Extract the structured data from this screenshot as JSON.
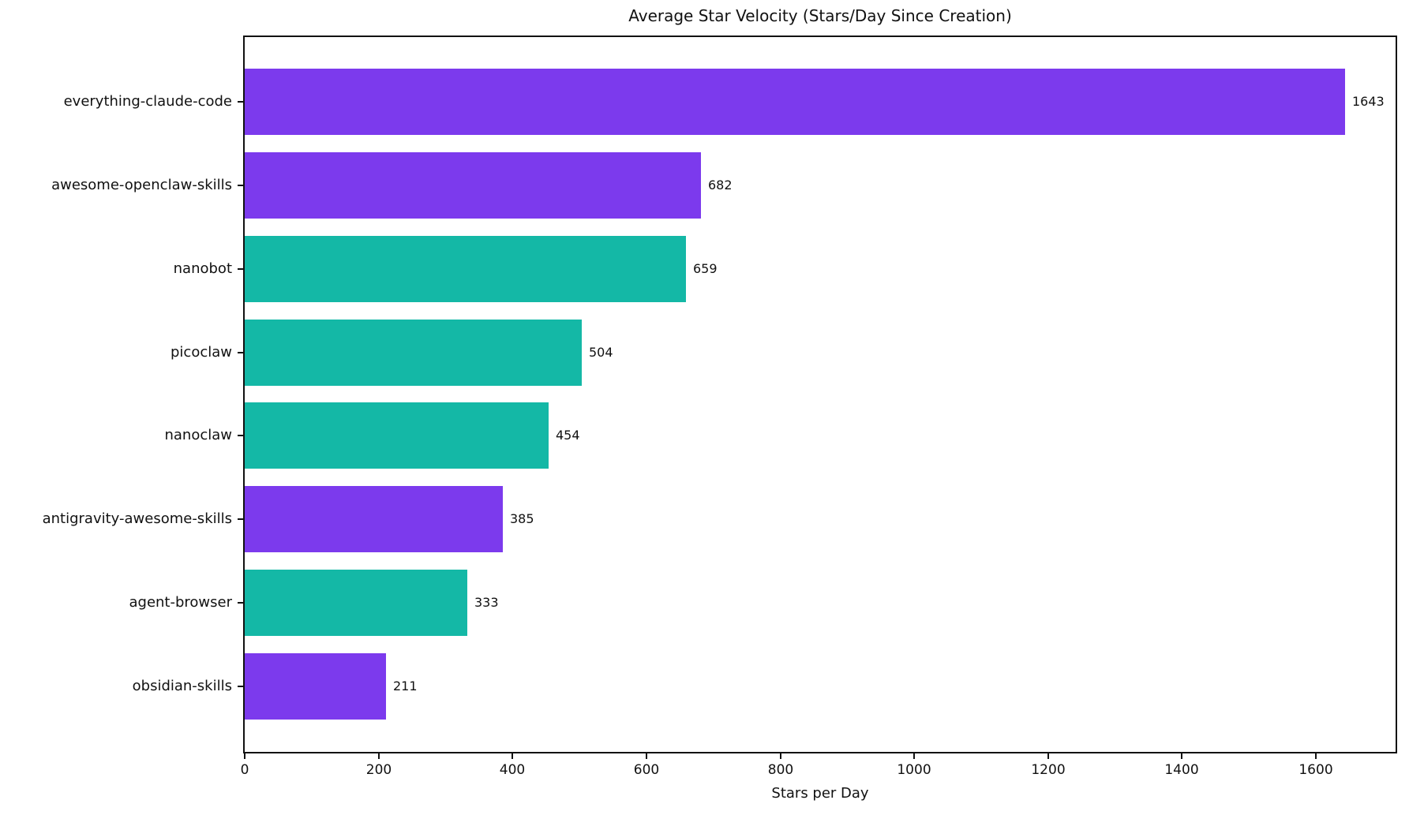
{
  "chart_data": {
    "type": "bar",
    "orientation": "horizontal",
    "title": "Average Star Velocity (Stars/Day Since Creation)",
    "xlabel": "Stars per Day",
    "ylabel": "",
    "categories": [
      "everything-claude-code",
      "awesome-openclaw-skills",
      "nanobot",
      "picoclaw",
      "nanoclaw",
      "antigravity-awesome-skills",
      "agent-browser",
      "obsidian-skills"
    ],
    "values": [
      1643,
      682,
      659,
      504,
      454,
      385,
      333,
      211
    ],
    "value_labels": [
      "1643",
      "682",
      "659",
      "504",
      "454",
      "385",
      "333",
      "211"
    ],
    "bar_colors": [
      "#7c3aed",
      "#7c3aed",
      "#14b8a6",
      "#14b8a6",
      "#14b8a6",
      "#7c3aed",
      "#14b8a6",
      "#7c3aed"
    ],
    "xticks": [
      0,
      200,
      400,
      600,
      800,
      1000,
      1200,
      1400,
      1600
    ],
    "xlim": [
      0,
      1719
    ],
    "grid": false,
    "legend": null,
    "colors": {
      "purple": "#7c3aed",
      "teal": "#14b8a6",
      "text": "#111111",
      "spine": "#111111",
      "background": "#ffffff"
    }
  }
}
